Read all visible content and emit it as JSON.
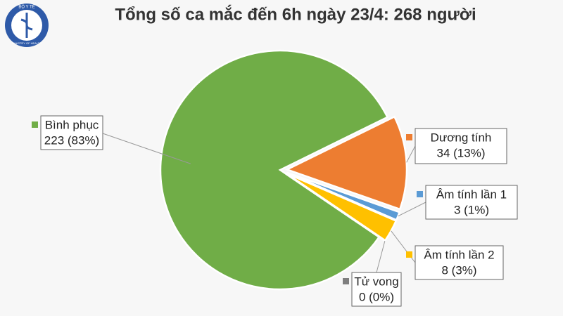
{
  "logo": {
    "top": "BỘ Y TẾ",
    "bottom": "MINISTRY OF HEALTH"
  },
  "chart_data": {
    "type": "pie",
    "title": "Tổng số ca mắc đến 6h ngày 23/4: 268 người",
    "categories": [
      "Bình phục",
      "Dương tính",
      "Âm tính lần 1",
      "Âm tính lần 2",
      "Tử vong"
    ],
    "values": [
      223,
      34,
      3,
      8,
      0
    ],
    "value_labels": [
      "223 (83%)",
      "34 (13%)",
      "3 (1%)",
      "8 (3%)",
      "0 (0%)"
    ],
    "colors": [
      "#70ad47",
      "#ed7d31",
      "#5b9bd5",
      "#ffc000",
      "#7f7f7f"
    ]
  }
}
